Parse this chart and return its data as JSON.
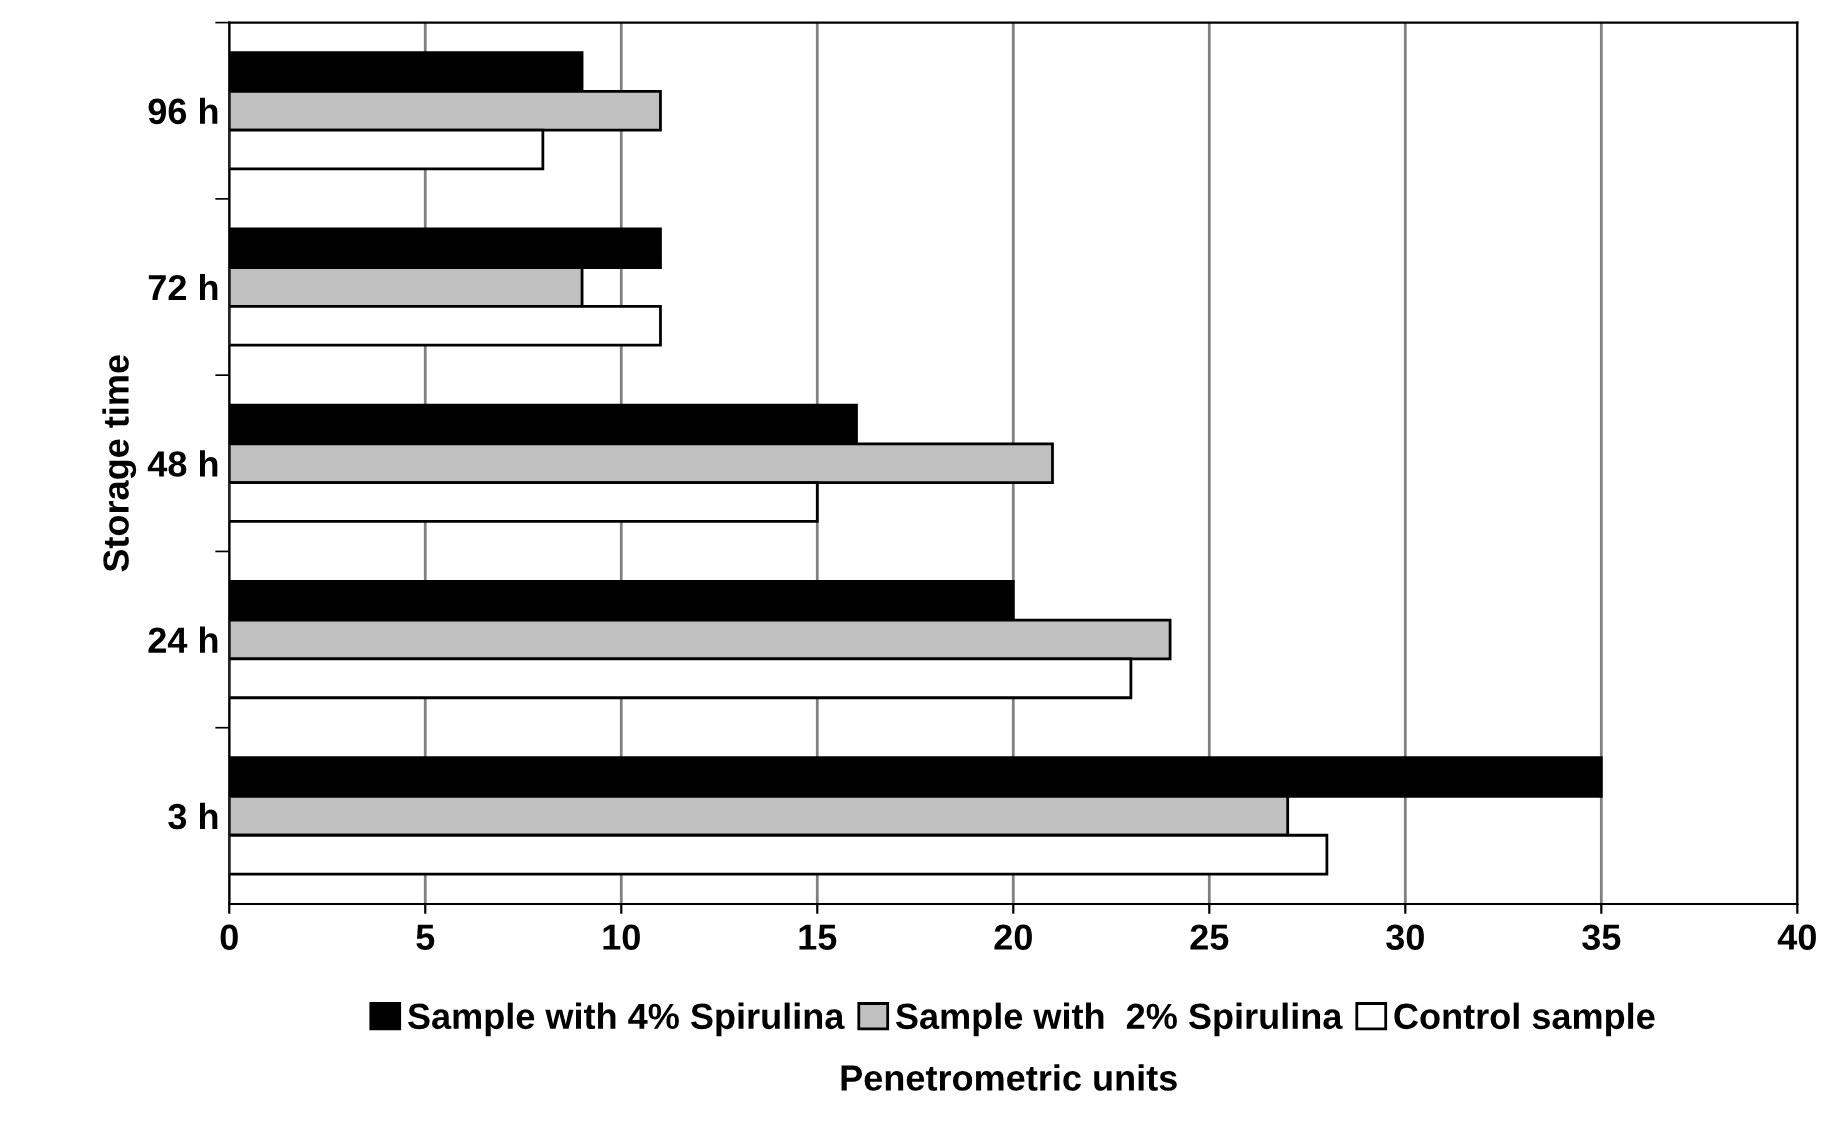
{
  "chart_data": {
    "type": "bar",
    "orientation": "horizontal",
    "categories": [
      "96 h",
      "72 h",
      "48 h",
      "24 h",
      "3 h"
    ],
    "series": [
      {
        "name": "Sample with 4% Spirulina",
        "color": "#000000",
        "values": [
          9,
          11,
          16,
          20,
          35
        ]
      },
      {
        "name": "Sample with  2% Spirulina",
        "color": "#c0c0c0",
        "values": [
          11,
          9,
          21,
          24,
          27
        ]
      },
      {
        "name": "Control sample",
        "color": "#ffffff",
        "values": [
          8,
          11,
          15,
          23,
          28
        ]
      }
    ],
    "xlabel": "Penetrometric units",
    "ylabel": "Storage time",
    "xlim": [
      0,
      40
    ],
    "xticks": [
      0,
      5,
      10,
      15,
      20,
      25,
      30,
      35,
      40
    ],
    "grid": "x",
    "legend": "bottom"
  }
}
